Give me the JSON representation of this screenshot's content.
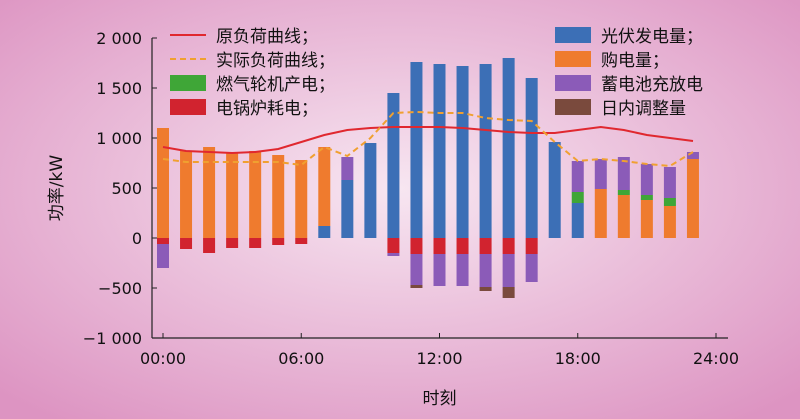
{
  "colors": {
    "background_center": "#f7e6f1",
    "background_edge": "#dd94c2",
    "pv": "#3c6fb6",
    "purchase": "#ef7b2e",
    "gas_turbine": "#3fa637",
    "electric_boiler": "#d1232f",
    "storage": "#8b5bb8",
    "intraday": "#7a4a3d",
    "original_load": "#e0282f",
    "actual_load": "#f0a030"
  },
  "chart_data": {
    "type": "bar",
    "xlabel": "时刻",
    "ylabel": "功率/kW",
    "xlim": [
      0,
      24
    ],
    "ylim": [
      -1000,
      2000
    ],
    "x_ticks": [
      {
        "value": 0,
        "label": "00:00"
      },
      {
        "value": 6,
        "label": "06:00"
      },
      {
        "value": 12,
        "label": "12:00"
      },
      {
        "value": 18,
        "label": "18:00"
      },
      {
        "value": 24,
        "label": "24:00"
      }
    ],
    "y_ticks": [
      {
        "value": 2000,
        "label": "2 000"
      },
      {
        "value": 1500,
        "label": "1 500"
      },
      {
        "value": 1000,
        "label": "1 000"
      },
      {
        "value": 500,
        "label": "500"
      },
      {
        "value": 0,
        "label": "0"
      },
      {
        "value": -500,
        "label": "−500"
      },
      {
        "value": -1000,
        "label": "−1 000"
      }
    ],
    "hours": [
      0,
      1,
      2,
      3,
      4,
      5,
      6,
      7,
      8,
      9,
      10,
      11,
      12,
      13,
      14,
      15,
      16,
      17,
      18,
      19,
      20,
      21,
      22,
      23
    ],
    "bar_series": [
      {
        "name": "光伏发电量；",
        "color_key": "pv",
        "values": [
          0,
          0,
          0,
          0,
          0,
          0,
          0,
          120,
          580,
          950,
          1450,
          1760,
          1740,
          1720,
          1740,
          1800,
          1600,
          960,
          350,
          0,
          0,
          0,
          0,
          0
        ]
      },
      {
        "name": "购电量；",
        "color_key": "purchase",
        "values": [
          1100,
          870,
          910,
          860,
          870,
          830,
          780,
          790,
          0,
          0,
          0,
          0,
          0,
          0,
          0,
          0,
          0,
          0,
          0,
          490,
          430,
          380,
          320,
          790
        ]
      },
      {
        "name": "燃气轮机产电；",
        "color_key": "gas_turbine",
        "values": [
          0,
          0,
          0,
          0,
          0,
          0,
          0,
          0,
          0,
          0,
          0,
          0,
          0,
          0,
          0,
          0,
          0,
          0,
          110,
          0,
          50,
          50,
          80,
          0
        ]
      },
      {
        "name": "电锅炉耗电；",
        "color_key": "electric_boiler",
        "values": [
          -60,
          -110,
          -150,
          -100,
          -100,
          -70,
          -60,
          0,
          0,
          0,
          -150,
          -160,
          -160,
          -160,
          -160,
          -160,
          -160,
          0,
          0,
          0,
          0,
          0,
          0,
          0
        ]
      },
      {
        "name": "蓄电池充放电",
        "color_key": "storage",
        "values": [
          -240,
          0,
          0,
          0,
          0,
          0,
          0,
          0,
          230,
          0,
          -30,
          -310,
          -320,
          -320,
          -330,
          -330,
          -280,
          0,
          310,
          300,
          330,
          310,
          310,
          70
        ],
        "stack_on": "electric_boiler"
      },
      {
        "name": "日内调整量",
        "color_key": "intraday",
        "values": [
          0,
          0,
          0,
          0,
          0,
          0,
          0,
          0,
          0,
          0,
          0,
          -30,
          0,
          0,
          -40,
          -110,
          0,
          0,
          0,
          0,
          0,
          0,
          0,
          0
        ]
      }
    ],
    "line_series": [
      {
        "name": "原负荷曲线；",
        "color_key": "original_load",
        "dash": false,
        "x": [
          0,
          1,
          2,
          3,
          4,
          5,
          6,
          7,
          8,
          9,
          10,
          11,
          12,
          13,
          14,
          15,
          16,
          17,
          18,
          19,
          20,
          21,
          22,
          23
        ],
        "y": [
          910,
          870,
          860,
          850,
          860,
          890,
          960,
          1030,
          1080,
          1100,
          1110,
          1110,
          1110,
          1100,
          1080,
          1060,
          1050,
          1050,
          1080,
          1110,
          1080,
          1030,
          1000,
          970
        ]
      },
      {
        "name": "实际负荷曲线；",
        "color_key": "actual_load",
        "dash": true,
        "x": [
          0,
          1,
          2,
          3,
          4,
          5,
          6,
          7,
          8,
          9,
          10,
          11,
          12,
          13,
          14,
          15,
          16,
          17,
          18,
          19,
          20,
          21,
          22,
          23
        ],
        "y": [
          790,
          760,
          760,
          760,
          760,
          760,
          730,
          910,
          820,
          1000,
          1250,
          1260,
          1250,
          1250,
          1200,
          1180,
          1170,
          960,
          770,
          790,
          770,
          740,
          720,
          860
        ]
      }
    ],
    "legend_left": [
      "原负荷曲线；",
      "实际负荷曲线；",
      "燃气轮机产电；",
      "电锅炉耗电；"
    ],
    "legend_right": [
      "光伏发电量；",
      "购电量；",
      "蓄电池充放电",
      "日内调整量"
    ]
  }
}
